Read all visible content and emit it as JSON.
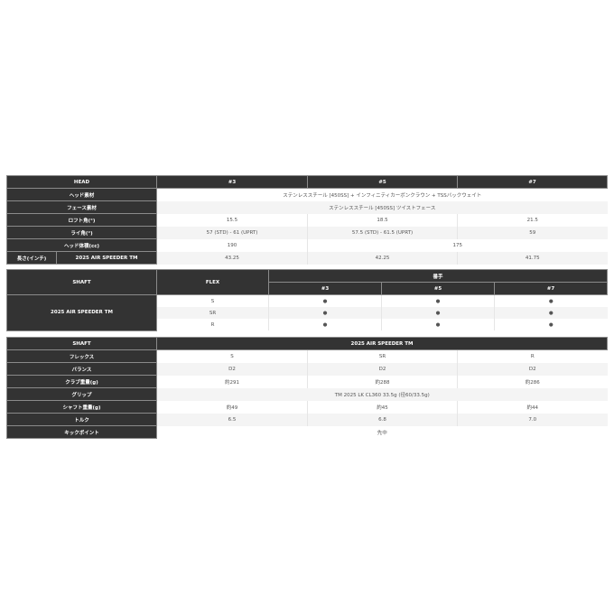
{
  "head_table": {
    "header": [
      "HEAD",
      "#3",
      "#5",
      "#7"
    ],
    "rows": {
      "head_material": {
        "label": "ヘッド素材",
        "value": "ステンレススチール [450SS] + インフィニティカーボンクラウン + TSSバックウェイト"
      },
      "face_material": {
        "label": "フェース素材",
        "value": "ステンレススチール [450SS] ツイストフェース"
      },
      "loft": {
        "label": "ロフト角(°)",
        "values": [
          "15.5",
          "18.5",
          "21.5"
        ]
      },
      "lie": {
        "label": "ライ角(°)",
        "values": [
          "57 (STD) - 61 (UPRT)",
          "57.5 (STD) - 61.5 (UPRT)",
          "59"
        ]
      },
      "volume": {
        "label": "ヘッド体積(cc)",
        "values": [
          "190",
          "175"
        ]
      },
      "length": {
        "label": "長さ(インチ)",
        "sublabel": "2025 AIR SPEEDER TM",
        "values": [
          "43.25",
          "42.25",
          "41.75"
        ]
      }
    }
  },
  "flex_table": {
    "shaft_label": "SHAFT",
    "flex_label": "FLEX",
    "number_label": "番手",
    "numbers": [
      "#3",
      "#5",
      "#7"
    ],
    "shaft_name": "2025 AIR SPEEDER TM",
    "rows": [
      {
        "flex": "S",
        "marks": [
          "●",
          "●",
          "●"
        ]
      },
      {
        "flex": "SR",
        "marks": [
          "●",
          "●",
          "●"
        ]
      },
      {
        "flex": "R",
        "marks": [
          "●",
          "●",
          "●"
        ]
      }
    ]
  },
  "shaft_table": {
    "header_label": "SHAFT",
    "header_value": "2025 AIR SPEEDER TM",
    "rows": {
      "flex": {
        "label": "フレックス",
        "values": [
          "S",
          "SR",
          "R"
        ]
      },
      "balance": {
        "label": "バランス",
        "values": [
          "D2",
          "D2",
          "D2"
        ]
      },
      "club_weight": {
        "label": "クラブ重量(g)",
        "values": [
          "約291",
          "約288",
          "約286"
        ]
      },
      "grip": {
        "label": "グリップ",
        "value": "TM 2025 LK CL360 33.5g (径60/33.5g)"
      },
      "shaft_weight": {
        "label": "シャフト重量(g)",
        "values": [
          "約49",
          "約45",
          "約44"
        ]
      },
      "torque": {
        "label": "トルク",
        "values": [
          "6.5",
          "6.8",
          "7.0"
        ]
      },
      "kick_point": {
        "label": "キックポイント",
        "value": "先中"
      }
    }
  }
}
